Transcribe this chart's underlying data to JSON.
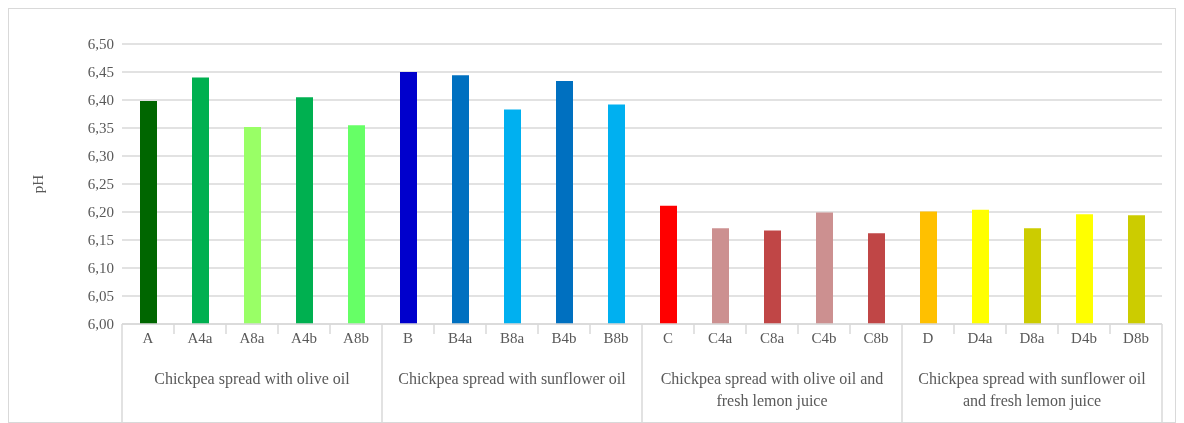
{
  "chart_data": {
    "type": "bar",
    "ylabel": "pH",
    "categories": [
      "A",
      "A4a",
      "A8a",
      "A4b",
      "A8b",
      "B",
      "B4a",
      "B8a",
      "B4b",
      "B8b",
      "C",
      "C4a",
      "C8a",
      "C4b",
      "C8b",
      "D",
      "D4a",
      "D8a",
      "D4b",
      "D8b"
    ],
    "values": [
      6.398,
      6.44,
      6.352,
      6.405,
      6.355,
      6.45,
      6.444,
      6.383,
      6.434,
      6.392,
      6.211,
      6.171,
      6.167,
      6.199,
      6.162,
      6.201,
      6.204,
      6.171,
      6.196,
      6.194
    ],
    "colors": [
      "#006600",
      "#00b050",
      "#99ff66",
      "#00b050",
      "#66ff66",
      "#0000cc",
      "#0070c0",
      "#00b0f0",
      "#0070c0",
      "#00b0f0",
      "#ff0000",
      "#cc9090",
      "#c04646",
      "#cc9090",
      "#c04646",
      "#ffc000",
      "#ffff00",
      "#cccc00",
      "#ffff00",
      "#cccc00"
    ],
    "annotations": [
      "Chickpea spread with olive oil",
      "Chickpea spread with sunflower oil",
      "Chickpea spread with olive oil and fresh lemon juice",
      "Chickpea spread with sunflower oil and fresh lemon juice"
    ],
    "ylim": [
      6.0,
      6.5
    ],
    "yticks": [
      {
        "value": 6.0,
        "label": "6,00"
      },
      {
        "value": 6.05,
        "label": "6,05"
      },
      {
        "value": 6.1,
        "label": "6,10"
      },
      {
        "value": 6.15,
        "label": "6,15"
      },
      {
        "value": 6.2,
        "label": "6,20"
      },
      {
        "value": 6.25,
        "label": "6,25"
      },
      {
        "value": 6.3,
        "label": "6,30"
      },
      {
        "value": 6.35,
        "label": "6,35"
      },
      {
        "value": 6.4,
        "label": "6,40"
      },
      {
        "value": 6.45,
        "label": "6,45"
      },
      {
        "value": 6.5,
        "label": "6,50"
      }
    ],
    "grid": "y",
    "legend": false
  }
}
